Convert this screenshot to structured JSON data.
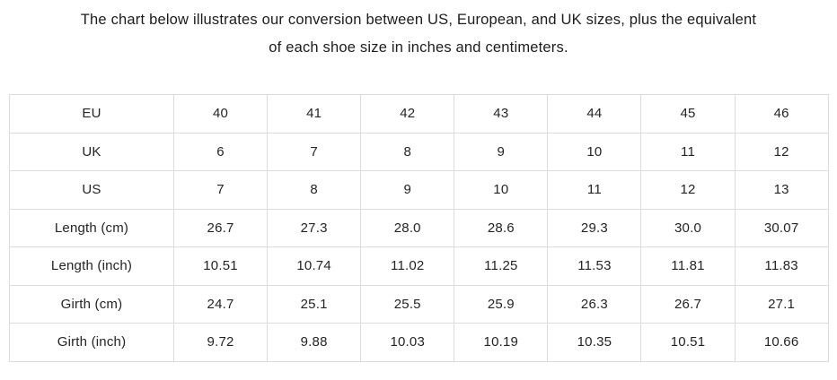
{
  "page": {
    "title_line1": "The chart below illustrates our conversion between US, European, and UK sizes, plus the equivalent",
    "title_line2": "of each shoe size in inches and centimeters."
  },
  "colors": {
    "background": "#ffffff",
    "table_border": "#dcdcdc",
    "text": "#222222"
  },
  "chart_data": {
    "type": "table",
    "title": "The chart below illustrates our conversion between US, European, and UK sizes, plus the equivalent of each shoe size in inches and centimeters.",
    "rows": [
      {
        "label": "EU",
        "values": [
          "40",
          "41",
          "42",
          "43",
          "44",
          "45",
          "46"
        ]
      },
      {
        "label": "UK",
        "values": [
          "6",
          "7",
          "8",
          "9",
          "10",
          "11",
          "12"
        ]
      },
      {
        "label": "US",
        "values": [
          "7",
          "8",
          "9",
          "10",
          "11",
          "12",
          "13"
        ]
      },
      {
        "label": "Length (cm)",
        "values": [
          "26.7",
          "27.3",
          "28.0",
          "28.6",
          "29.3",
          "30.0",
          "30.07"
        ]
      },
      {
        "label": "Length (inch)",
        "values": [
          "10.51",
          "10.74",
          "11.02",
          "11.25",
          "11.53",
          "11.81",
          "11.83"
        ]
      },
      {
        "label": "Girth (cm)",
        "values": [
          "24.7",
          "25.1",
          "25.5",
          "25.9",
          "26.3",
          "26.7",
          "27.1"
        ]
      },
      {
        "label": "Girth (inch)",
        "values": [
          "9.72",
          "9.88",
          "10.03",
          "10.19",
          "10.35",
          "10.51",
          "10.66"
        ]
      }
    ]
  }
}
